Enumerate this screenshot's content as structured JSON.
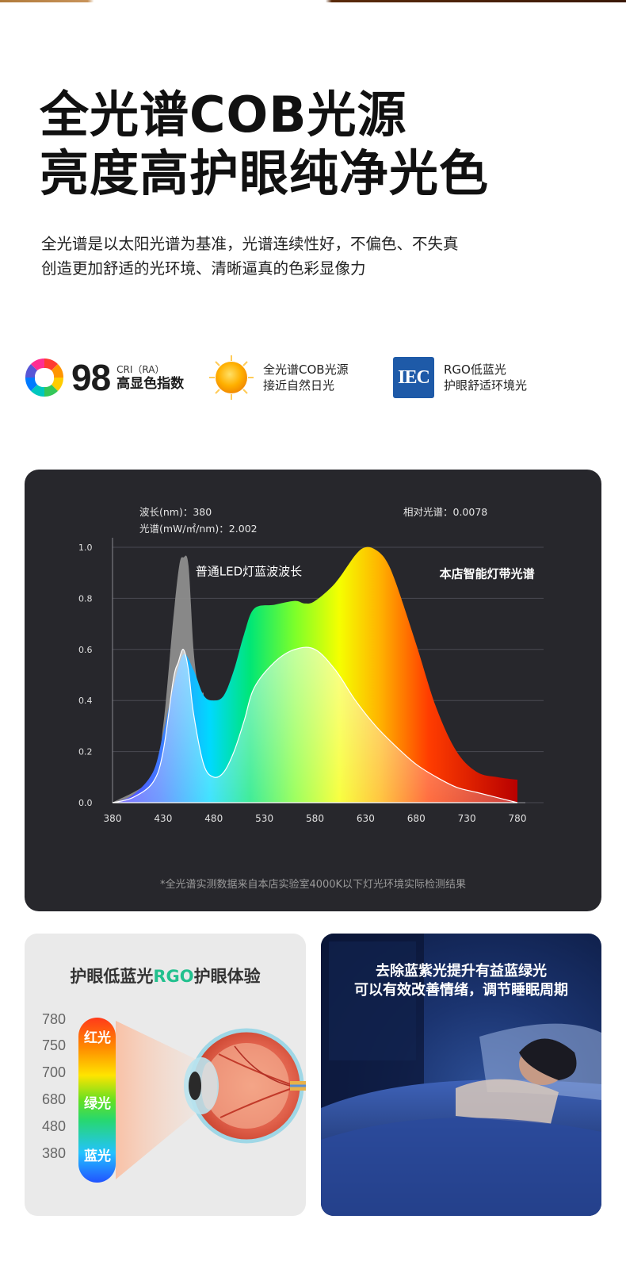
{
  "headline": {
    "line1": "全光谱COB光源",
    "line2": "亮度高护眼纯净光色"
  },
  "description": {
    "line1": "全光谱是以太阳光谱为基准，光谱连续性好，不偏色、不失真",
    "line2": "创造更加舒适的光环境、清晰逼真的色彩显像力"
  },
  "features": {
    "cri": {
      "icon": "color-wheel-icon",
      "number": "98",
      "label_top": "CRI（RA）",
      "label_main": "高显色指数"
    },
    "cob": {
      "icon": "sun-icon",
      "line1": "全光谱COB光源",
      "line2": "接近自然日光"
    },
    "rgo": {
      "icon": "iec-logo-icon",
      "logo_text": "IEC",
      "line1": "RGO低蓝光",
      "line2": "护眼舒适环境光"
    }
  },
  "chart_info": {
    "wavelength": "波长(nm)：380",
    "spectrum": "光谱(mW/㎡/nm)：2.002",
    "relative": "相对光谱：0.0078"
  },
  "chart_data": {
    "type": "area",
    "x_ticks": [
      "380",
      "430",
      "480",
      "530",
      "580",
      "630",
      "680",
      "730",
      "780"
    ],
    "y_ticks": [
      "0.0",
      "0.2",
      "0.4",
      "0.6",
      "0.8",
      "1.0"
    ],
    "xlim": [
      380,
      780
    ],
    "ylim": [
      0,
      1.0
    ],
    "grid": true,
    "series": [
      {
        "name": "本店智能灯带光谱",
        "x": [
          380,
          400,
          420,
          430,
          440,
          450,
          460,
          470,
          480,
          490,
          500,
          510,
          520,
          540,
          560,
          570,
          580,
          600,
          620,
          630,
          640,
          650,
          660,
          680,
          700,
          720,
          740,
          760,
          780
        ],
        "y": [
          0.0,
          0.03,
          0.12,
          0.27,
          0.45,
          0.58,
          0.52,
          0.42,
          0.4,
          0.42,
          0.52,
          0.66,
          0.76,
          0.775,
          0.79,
          0.78,
          0.79,
          0.86,
          0.97,
          1.0,
          0.99,
          0.95,
          0.86,
          0.62,
          0.37,
          0.2,
          0.12,
          0.1,
          0.09
        ]
      },
      {
        "name": "普通LED灯蓝波波长",
        "x": [
          380,
          400,
          420,
          430,
          440,
          445,
          450,
          455,
          460,
          470,
          480,
          490,
          500,
          510,
          520,
          540,
          560,
          580,
          600,
          620,
          640,
          660,
          680,
          700,
          720,
          740,
          760,
          780
        ],
        "y": [
          0.0,
          0.02,
          0.08,
          0.2,
          0.48,
          0.55,
          0.6,
          0.52,
          0.35,
          0.15,
          0.1,
          0.12,
          0.2,
          0.32,
          0.45,
          0.55,
          0.6,
          0.6,
          0.52,
          0.4,
          0.3,
          0.22,
          0.15,
          0.1,
          0.06,
          0.04,
          0.02,
          0.0
        ]
      },
      {
        "name": "",
        "x": [
          380,
          420,
          430,
          440,
          446,
          450,
          455,
          460,
          465,
          470
        ],
        "y": [
          0.0,
          0.1,
          0.3,
          0.72,
          0.93,
          0.96,
          0.93,
          0.6,
          0.45,
          0.43
        ]
      }
    ],
    "annotations": [
      "普通LED灯蓝波波长",
      "本店智能灯带光谱"
    ]
  },
  "footnote": "*全光谱实测数据来自本店实验室4000K以下灯光环境实际检测结果",
  "eye_card": {
    "title_prefix": "护眼低蓝光",
    "title_highlight": "RGO",
    "title_suffix": "护眼体验",
    "scale_numbers": [
      "780",
      "750",
      "700",
      "680",
      "480",
      "380"
    ],
    "scale_labels": [
      "红光",
      "绿光",
      "蓝光"
    ],
    "eye_icon": "eye-cross-section-icon"
  },
  "sleep_card": {
    "line1": "去除蓝紫光提升有益蓝绿光",
    "line2": "可以有效改善情绪，调节睡眠周期"
  }
}
